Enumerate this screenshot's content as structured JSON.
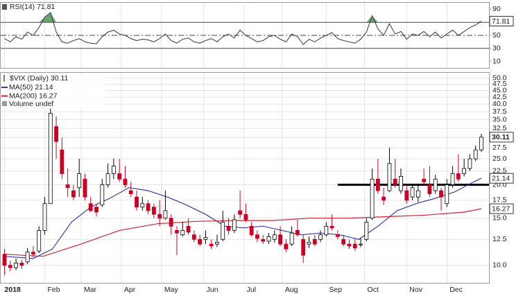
{
  "chart_data": [
    {
      "type": "line",
      "title": "RSI(14) 71.81",
      "color": "#444444",
      "fill_color": "#2e7d32",
      "x": [
        0,
        3,
        6,
        9,
        12,
        15,
        18,
        21,
        24,
        27,
        30,
        33,
        36,
        39,
        42,
        45,
        48,
        51,
        54,
        57,
        60,
        63,
        66,
        69,
        72,
        75,
        78,
        81,
        84,
        87,
        90,
        93,
        96,
        99,
        102,
        105,
        108,
        111,
        114,
        117,
        120,
        123,
        126,
        129,
        132,
        135,
        138,
        141,
        144,
        147,
        150,
        153,
        156,
        159,
        162,
        165,
        168,
        171,
        174,
        177,
        180,
        183,
        186,
        189,
        192,
        195,
        198,
        201,
        204,
        207,
        210,
        213,
        216,
        219,
        222,
        225,
        228,
        231,
        234,
        237,
        240,
        243,
        246,
        249
      ],
      "values": [
        45,
        40,
        48,
        44,
        55,
        50,
        62,
        78,
        85,
        55,
        40,
        38,
        42,
        45,
        40,
        38,
        37,
        48,
        55,
        58,
        52,
        50,
        45,
        42,
        44,
        43,
        40,
        45,
        52,
        42,
        38,
        44,
        46,
        40,
        38,
        42,
        45,
        40,
        48,
        52,
        46,
        58,
        50,
        45,
        40,
        42,
        48,
        50,
        44,
        40,
        52,
        48,
        36,
        44,
        40,
        46,
        50,
        54,
        45,
        42,
        40,
        38,
        44,
        55,
        80,
        60,
        50,
        68,
        52,
        56,
        44,
        52,
        50,
        56,
        48,
        55,
        46,
        52,
        58,
        50,
        56,
        62,
        66,
        71.81
      ],
      "xlim": [
        -2,
        253
      ],
      "ylim": [
        0,
        100
      ],
      "yticks": [
        90,
        70,
        50,
        30,
        10
      ],
      "levels": [
        70,
        50,
        30
      ],
      "xticks": [
        0,
        21,
        40,
        61,
        82,
        104,
        125,
        145,
        168,
        188,
        210,
        231
      ]
    },
    {
      "type": "candlestick",
      "title": "$VIX (Daily) 30.11",
      "log_y": true,
      "volume_legend": "Volume undef",
      "up_color": "#000000",
      "down_color": "#cc0022",
      "x": [
        0,
        3,
        6,
        9,
        12,
        15,
        18,
        21,
        24,
        27,
        30,
        33,
        36,
        39,
        42,
        45,
        48,
        51,
        54,
        57,
        60,
        63,
        66,
        69,
        72,
        75,
        78,
        81,
        84,
        87,
        90,
        93,
        96,
        99,
        102,
        105,
        108,
        111,
        114,
        117,
        120,
        123,
        126,
        129,
        132,
        135,
        138,
        141,
        144,
        147,
        150,
        153,
        156,
        159,
        162,
        165,
        168,
        171,
        174,
        177,
        180,
        183,
        186,
        189,
        192,
        195,
        198,
        201,
        204,
        207,
        210,
        213,
        216,
        219,
        222,
        225,
        228,
        231,
        234,
        237,
        240,
        243,
        246,
        249
      ],
      "open": [
        11,
        10,
        9.8,
        10.2,
        10.3,
        11.2,
        11.3,
        13.5,
        17,
        33,
        27,
        20,
        19,
        19.5,
        21,
        17,
        16.5,
        16.8,
        20,
        22,
        22,
        21,
        19,
        18,
        16.5,
        17,
        16.5,
        15.5,
        15,
        15,
        13.5,
        13,
        14,
        13,
        12.5,
        12.5,
        12,
        12,
        12.5,
        14,
        13.5,
        16,
        15.5,
        14,
        13,
        12.5,
        12.3,
        12.5,
        13,
        12,
        12,
        13.5,
        12.5,
        12,
        12.5,
        12.5,
        13,
        14,
        13,
        12.5,
        12,
        12,
        12,
        12.5,
        15,
        21,
        18,
        19,
        21,
        19,
        19,
        18,
        18,
        21,
        20,
        19,
        19,
        17,
        20,
        22,
        22,
        23,
        25,
        27
      ],
      "high": [
        11.5,
        10.4,
        10.6,
        10.5,
        11.6,
        11.8,
        14,
        18,
        40,
        36,
        30,
        23,
        20,
        25,
        22,
        18,
        17,
        21,
        24,
        25,
        25,
        23.5,
        20.5,
        19,
        18,
        17.5,
        17,
        17.5,
        19,
        15.5,
        14,
        14.5,
        15,
        13.5,
        13,
        13.5,
        12.5,
        13,
        16,
        15,
        15.5,
        19,
        17,
        14.5,
        13.5,
        13,
        13.2,
        13.5,
        14,
        12.5,
        14,
        14.8,
        13,
        12.8,
        13,
        13.5,
        14.5,
        15.5,
        13.5,
        13,
        12.5,
        12.5,
        12.6,
        15,
        23,
        25,
        19.5,
        27.5,
        25,
        23,
        20,
        20,
        20,
        23,
        23.5,
        21.8,
        19.5,
        21,
        23.5,
        26,
        25,
        26,
        28,
        31
      ],
      "low": [
        9.2,
        9.5,
        9.6,
        9.7,
        10.1,
        10.7,
        11.1,
        13,
        17,
        25,
        21,
        18,
        17.5,
        18,
        17.5,
        15.8,
        15.2,
        16.5,
        19.5,
        21,
        20.5,
        19.5,
        18,
        16,
        16,
        15.5,
        15,
        14,
        14.8,
        13,
        10.9,
        12.8,
        13,
        12.2,
        11.8,
        12,
        11.5,
        11.7,
        12.3,
        13,
        13.2,
        15,
        14.5,
        12.8,
        12.2,
        12,
        12,
        12.2,
        11.8,
        11.2,
        11.8,
        12.8,
        10.2,
        11.6,
        11.8,
        12.2,
        12.8,
        13.5,
        12.5,
        11.8,
        11.5,
        11.3,
        11.7,
        12.3,
        14.8,
        18.5,
        16.8,
        18.8,
        19.5,
        18.5,
        17,
        17.5,
        17.2,
        19.8,
        18,
        18.5,
        16,
        16.5,
        19.5,
        20.5,
        21.5,
        22.5,
        24.5,
        26.5
      ],
      "close": [
        10,
        9.8,
        10.2,
        10,
        11.2,
        11,
        13.5,
        17,
        37,
        29,
        22,
        19.5,
        18,
        22,
        18,
        16,
        15.8,
        20,
        22,
        23.5,
        21,
        20,
        18.5,
        16.5,
        17,
        16,
        15.5,
        15,
        16,
        14,
        13.2,
        13.5,
        13.3,
        12.5,
        12,
        12.7,
        11.8,
        12.2,
        14.5,
        13.5,
        14.8,
        15.5,
        14.8,
        13,
        12.6,
        12.3,
        12.8,
        13,
        12,
        11.5,
        13.2,
        13,
        10.9,
        12.2,
        12,
        13,
        14,
        13.8,
        12.8,
        12,
        11.8,
        11.6,
        12,
        14.5,
        21,
        19,
        17.5,
        24,
        20,
        21.5,
        17.5,
        19.5,
        19,
        20.5,
        18.5,
        21,
        18,
        20,
        22,
        21,
        23,
        25,
        27,
        30.11
      ],
      "series": [
        {
          "name": "MA(50) 21.14",
          "color": "#3a3aa8",
          "x": [
            0,
            15,
            25,
            35,
            45,
            55,
            65,
            75,
            85,
            95,
            105,
            115,
            125,
            135,
            145,
            155,
            165,
            175,
            185,
            195,
            205,
            215,
            225,
            235,
            245,
            249
          ],
          "values": [
            10.8,
            10.6,
            11.5,
            14.5,
            16.5,
            17.8,
            19.5,
            19,
            18,
            16.8,
            15.5,
            14,
            13.8,
            14,
            13.5,
            13,
            13.2,
            13,
            12.5,
            14,
            16,
            17,
            17.8,
            18.8,
            20.5,
            21.14
          ]
        },
        {
          "name": "MA(200) 16.27",
          "color": "#cc2233",
          "x": [
            0,
            20,
            40,
            60,
            80,
            100,
            120,
            140,
            160,
            180,
            200,
            220,
            240,
            249
          ],
          "values": [
            11,
            10.8,
            12,
            13.5,
            14.3,
            14.6,
            14.7,
            14.7,
            15,
            15,
            15.2,
            15.4,
            15.8,
            16.27
          ]
        }
      ],
      "hline": {
        "value": 20,
        "x": [
          174,
          253
        ]
      },
      "xlim": [
        -2,
        253
      ],
      "ylim": [
        8.6,
        52.4
      ],
      "grid": true,
      "yticks": [
        {
          "value": 10,
          "label": "10.0"
        },
        12.5,
        {
          "value": 15,
          "label": "15.0"
        },
        17.5,
        {
          "value": 20,
          "label": "20.0"
        },
        22.5,
        {
          "value": 25,
          "label": "25.0"
        },
        27.5,
        {
          "value": 30,
          "label": "30.0"
        },
        32.5,
        {
          "value": 35,
          "label": "35.0"
        },
        37.5,
        {
          "value": 40,
          "label": "40.0"
        },
        42.5,
        {
          "value": 45,
          "label": "45.0"
        },
        47.5,
        {
          "value": 50,
          "label": "50.0"
        }
      ],
      "xticks": [
        {
          "value": 0,
          "label": "2018"
        },
        {
          "value": 21,
          "label": "Feb"
        },
        {
          "value": 40,
          "label": "Mar"
        },
        {
          "value": 61,
          "label": "Apr"
        },
        {
          "value": 82,
          "label": "May"
        },
        {
          "value": 104,
          "label": "Jun"
        },
        {
          "value": 125,
          "label": "Jul"
        },
        {
          "value": 145,
          "label": "Aug"
        },
        {
          "value": 168,
          "label": "Sep"
        },
        {
          "value": 188,
          "label": "Oct"
        },
        {
          "value": 210,
          "label": "Nov"
        },
        {
          "value": 231,
          "label": "Dec"
        }
      ]
    }
  ]
}
